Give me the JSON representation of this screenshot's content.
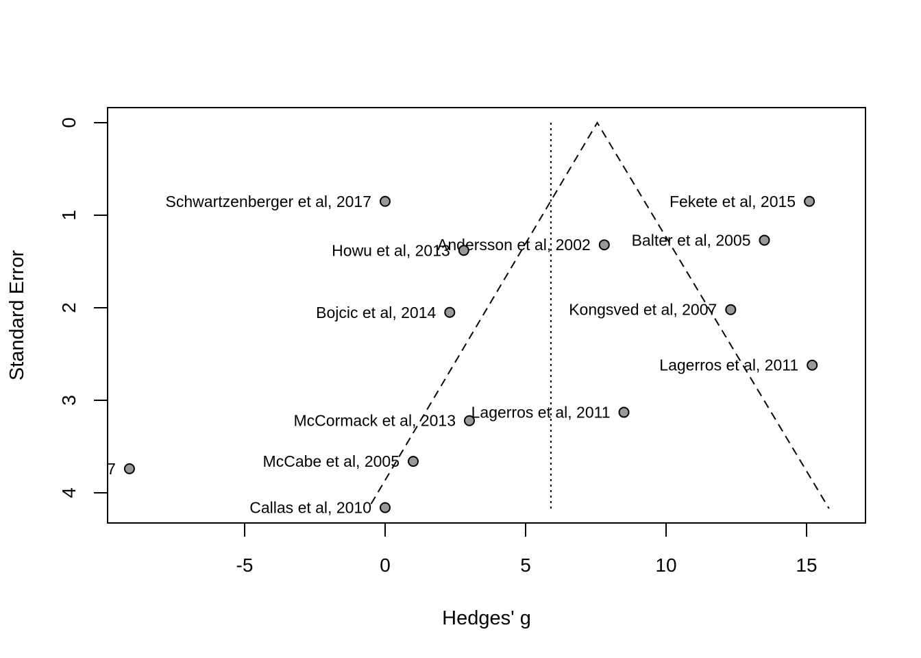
{
  "chart_data": {
    "type": "scatter",
    "title": "",
    "xlabel": "Hedges' g",
    "ylabel": "Standard Error",
    "xlim": [
      -10,
      17
    ],
    "ylim": [
      0,
      4.3
    ],
    "y_reversed": true,
    "x_ticks": [
      -5,
      0,
      5,
      10,
      15
    ],
    "x_tick_labels": [
      "-5",
      "0",
      "5",
      "10",
      "15"
    ],
    "y_ticks": [
      0,
      1,
      2,
      3,
      4
    ],
    "y_tick_labels": [
      "0",
      "1",
      "2",
      "3",
      "4"
    ],
    "grid": false,
    "legend": "none",
    "point_fill": "#999999",
    "reference_line": {
      "style": "dotted",
      "x": 5.9,
      "y_range": [
        0,
        4.17
      ]
    },
    "funnel": {
      "style": "dashed",
      "apex": [
        7.55,
        0
      ],
      "left_end": [
        -0.5,
        4.12
      ],
      "right_end": [
        15.8,
        4.17
      ]
    },
    "points": [
      {
        "label": "Schwartzenberger et al, 2017",
        "x": 0.0,
        "y": 0.85
      },
      {
        "label": "Fekete et al, 2015",
        "x": 15.1,
        "y": 0.85
      },
      {
        "label": "Andersson et al, 2002",
        "x": 7.8,
        "y": 1.32
      },
      {
        "label": "Balter et al, 2005",
        "x": 13.5,
        "y": 1.27
      },
      {
        "label": "Howu et al, 2013",
        "x": 2.8,
        "y": 1.38
      },
      {
        "label": "Bojcic et al, 2014",
        "x": 2.3,
        "y": 2.05
      },
      {
        "label": "Kongsved et al, 2007",
        "x": 12.3,
        "y": 2.02
      },
      {
        "label": "Lagerros et al, 2011",
        "x": 15.2,
        "y": 2.62
      },
      {
        "label": "Lagerros et al, 2011",
        "x": 8.5,
        "y": 3.13
      },
      {
        "label": "McCormack et al, 2013",
        "x": 3.0,
        "y": 3.22
      },
      {
        "label": "McCabe et al, 2005",
        "x": 1.0,
        "y": 3.66
      },
      {
        "label": "7",
        "x": -9.1,
        "y": 3.74
      },
      {
        "label": "Callas et al, 2010",
        "x": 0.0,
        "y": 4.16
      }
    ]
  }
}
